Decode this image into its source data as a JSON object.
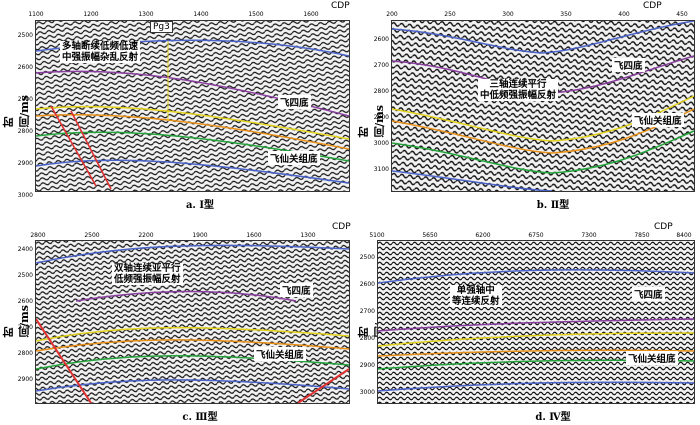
{
  "common": {
    "y_title": "时间/ms",
    "x_title": "CDP"
  },
  "colors": {
    "blue": "#4a63c8",
    "purple": "#8a3fa0",
    "yellow": "#e2d21a",
    "orange": "#e89018",
    "green": "#22a43a",
    "red": "#e03030"
  },
  "panels": [
    {
      "caption": "a. Ⅰ型",
      "x_ticks": [
        "1100",
        "1200",
        "1300",
        "1400",
        "1500",
        "1600"
      ],
      "y_ticks": [
        "2500",
        "2600",
        "2700",
        "2800",
        "2900",
        "3000"
      ],
      "note": "多轴断续低频低速\n中强振幅杂乱反射",
      "pg": "Pg3",
      "horizons": [
        "飞四底",
        "飞仙关组底"
      ]
    },
    {
      "caption": "b. Ⅱ型",
      "x_ticks": [
        "200",
        "250",
        "300",
        "350",
        "400",
        "450"
      ],
      "y_ticks": [
        "2600",
        "2700",
        "2800",
        "2900",
        "3000",
        "3100"
      ],
      "note": "三轴连续平行\n中低频强振幅反射",
      "horizons": [
        "飞四底",
        "飞仙关组底"
      ]
    },
    {
      "caption": "c. Ⅲ型",
      "x_ticks": [
        "2800",
        "2500",
        "2200",
        "1900",
        "1600",
        "1300"
      ],
      "y_ticks": [
        "2400",
        "2500",
        "2600",
        "2700",
        "2800",
        "2900"
      ],
      "note": "双轴连续亚平行\n低频强振幅反射",
      "horizons": [
        "飞四底",
        "飞仙关组底"
      ]
    },
    {
      "caption": "d. Ⅳ型",
      "x_ticks": [
        "5100",
        "5650",
        "6200",
        "6750",
        "7300",
        "7850",
        "8400"
      ],
      "y_ticks": [
        "2500",
        "2600",
        "2700",
        "2800",
        "2900",
        "3000"
      ],
      "note": "单强轴中\n等连续反射",
      "horizons": [
        "飞四底",
        "飞仙关组底"
      ]
    }
  ]
}
